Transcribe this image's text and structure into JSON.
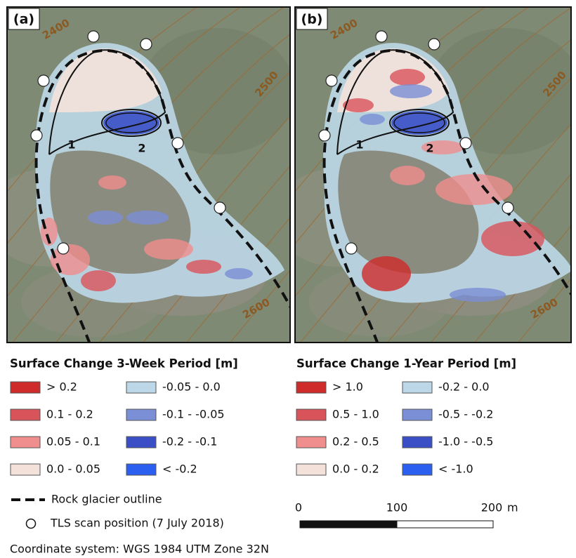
{
  "panels": [
    {
      "label": "(a)",
      "contours": [
        "2400",
        "2500",
        "2600"
      ],
      "zones": [
        "1",
        "2"
      ]
    },
    {
      "label": "(b)",
      "contours": [
        "2400",
        "2500",
        "2600"
      ],
      "zones": [
        "1",
        "2"
      ]
    }
  ],
  "legends": [
    {
      "title": "Surface Change 3-Week Period [m]",
      "items": [
        {
          "label": "> 0.2",
          "color": "#cf2b2b"
        },
        {
          "label": "0.1 - 0.2",
          "color": "#d9535a"
        },
        {
          "label": "0.05 - 0.1",
          "color": "#f08d8d"
        },
        {
          "label": "0.0 - 0.05",
          "color": "#f4e2da"
        },
        {
          "label": "-0.05 - 0.0",
          "color": "#bcd7e8"
        },
        {
          "label": "-0.1 - -0.05",
          "color": "#7a8fd6"
        },
        {
          "label": "-0.2 - -0.1",
          "color": "#3a4fc6"
        },
        {
          "label": "< -0.2",
          "color": "#2b5ff0"
        }
      ]
    },
    {
      "title": "Surface Change 1-Year Period [m]",
      "items": [
        {
          "label": "> 1.0",
          "color": "#cf2b2b"
        },
        {
          "label": "0.5 - 1.0",
          "color": "#d9535a"
        },
        {
          "label": "0.2 - 0.5",
          "color": "#f08d8d"
        },
        {
          "label": "0.0 - 0.2",
          "color": "#f4e2da"
        },
        {
          "label": "-0.2 - 0.0",
          "color": "#bcd7e8"
        },
        {
          "label": "-0.5 - -0.2",
          "color": "#7a8fd6"
        },
        {
          "label": "-1.0 - -0.5",
          "color": "#3a4fc6"
        },
        {
          "label": "< -1.0",
          "color": "#2b5ff0"
        }
      ]
    }
  ],
  "symbols": {
    "outline": "Rock glacier outline",
    "tls": "TLS scan position (7 July 2018)"
  },
  "scale_bar": {
    "labels": [
      "0",
      "100",
      "200"
    ],
    "unit": "m"
  },
  "footer": "Coordinate system: WGS 1984 UTM Zone 32N"
}
